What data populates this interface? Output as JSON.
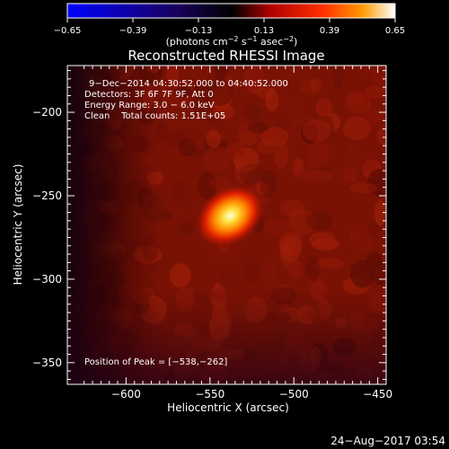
{
  "chart_data": {
    "type": "heatmap",
    "title": "Reconstructed RHESSI Image",
    "xlabel": "Heliocentric X (arcsec)",
    "ylabel": "Heliocentric Y (arcsec)",
    "xlim": [
      -635,
      -445
    ],
    "ylim": [
      -363,
      -172
    ],
    "xticks": [
      {
        "value": -600,
        "label": "−600"
      },
      {
        "value": -550,
        "label": "−550"
      },
      {
        "value": -500,
        "label": "−500"
      },
      {
        "value": -450,
        "label": "−450"
      }
    ],
    "yticks": [
      {
        "value": -200,
        "label": "−200"
      },
      {
        "value": -250,
        "label": "−250"
      },
      {
        "value": -300,
        "label": "−300"
      },
      {
        "value": -350,
        "label": "−350"
      }
    ],
    "colorbar": {
      "range": [
        -0.65,
        0.65
      ],
      "ticks": [
        {
          "value": -0.65,
          "label": "−0.65"
        },
        {
          "value": -0.39,
          "label": "−0.39"
        },
        {
          "value": -0.13,
          "label": "−0.13"
        },
        {
          "value": 0.13,
          "label": "0.13"
        },
        {
          "value": 0.39,
          "label": "0.39"
        },
        {
          "value": 0.65,
          "label": "0.65"
        }
      ],
      "unit_parts": [
        "(photons cm",
        "−2",
        " s",
        "−1",
        " asec",
        "−2",
        ")"
      ],
      "colors": [
        "#0000ff",
        "#000000",
        "#b00000",
        "#ff3000",
        "#ff9000",
        "#ffffff"
      ]
    },
    "annotations": [
      "9−Dec−2014 04:30:52.000 to 04:40:52.000",
      "Detectors: 3F 6F 7F 9F, Att 0",
      "Energy Range: 3.0 − 6.0 keV",
      "Clean    Total counts: 1.51E+05"
    ],
    "peak": {
      "label": "Position of Peak = [−538,−262]",
      "x": -538,
      "y": -262,
      "value": 0.65
    },
    "background_level": 0.2
  },
  "footer_timestamp": "24−Aug−2017 03:54"
}
